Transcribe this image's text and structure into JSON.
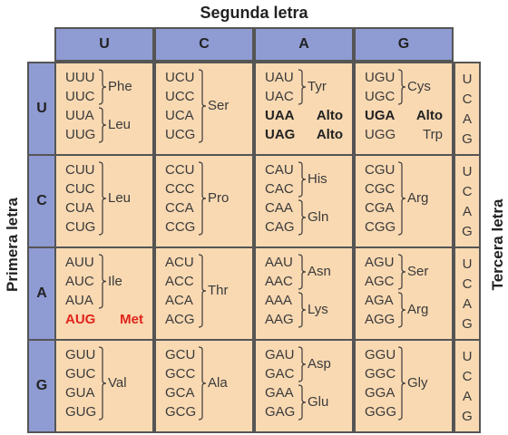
{
  "titles": {
    "second": "Segunda letra",
    "first": "Primera letra",
    "third": "Tercera letra"
  },
  "second_letters": [
    "U",
    "C",
    "A",
    "G"
  ],
  "first_letters": [
    "U",
    "C",
    "A",
    "G"
  ],
  "third_letters": [
    "U",
    "C",
    "A",
    "G"
  ],
  "cells": [
    [
      {
        "codons": [
          "UUU",
          "UUC",
          "UUA",
          "UUG"
        ],
        "groups": [
          {
            "rows": [
              0,
              1
            ],
            "label": "Phe"
          },
          {
            "rows": [
              2,
              3
            ],
            "label": "Leu"
          }
        ]
      },
      {
        "codons": [
          "UCU",
          "UCC",
          "UCA",
          "UCG"
        ],
        "groups": [
          {
            "rows": [
              0,
              3
            ],
            "label": "Ser"
          }
        ]
      },
      {
        "codons": [
          "UAU",
          "UAC",
          "UAA",
          "UAG"
        ],
        "groups": [
          {
            "rows": [
              0,
              1
            ],
            "label": "Tyr"
          }
        ],
        "inline": [
          {
            "row": 2,
            "label": "Alto",
            "style": "bold"
          },
          {
            "row": 3,
            "label": "Alto",
            "style": "bold"
          }
        ]
      },
      {
        "codons": [
          "UGU",
          "UGC",
          "UGA",
          "UGG"
        ],
        "groups": [
          {
            "rows": [
              0,
              1
            ],
            "label": "Cys"
          }
        ],
        "inline": [
          {
            "row": 2,
            "label": "Alto",
            "style": "bold"
          },
          {
            "row": 3,
            "label": "Trp",
            "style": "normal"
          }
        ]
      }
    ],
    [
      {
        "codons": [
          "CUU",
          "CUC",
          "CUA",
          "CUG"
        ],
        "groups": [
          {
            "rows": [
              0,
              3
            ],
            "label": "Leu"
          }
        ]
      },
      {
        "codons": [
          "CCU",
          "CCC",
          "CCA",
          "CCG"
        ],
        "groups": [
          {
            "rows": [
              0,
              3
            ],
            "label": "Pro"
          }
        ]
      },
      {
        "codons": [
          "CAU",
          "CAC",
          "CAA",
          "CAG"
        ],
        "groups": [
          {
            "rows": [
              0,
              1
            ],
            "label": "His"
          },
          {
            "rows": [
              2,
              3
            ],
            "label": "Gln"
          }
        ]
      },
      {
        "codons": [
          "CGU",
          "CGC",
          "CGA",
          "CGG"
        ],
        "groups": [
          {
            "rows": [
              0,
              3
            ],
            "label": "Arg"
          }
        ]
      }
    ],
    [
      {
        "codons": [
          "AUU",
          "AUC",
          "AUA",
          "AUG"
        ],
        "groups": [
          {
            "rows": [
              0,
              2
            ],
            "label": "Ile"
          }
        ],
        "inline": [
          {
            "row": 3,
            "label": "Met",
            "style": "red"
          }
        ]
      },
      {
        "codons": [
          "ACU",
          "ACC",
          "ACA",
          "ACG"
        ],
        "groups": [
          {
            "rows": [
              0,
              3
            ],
            "label": "Thr"
          }
        ]
      },
      {
        "codons": [
          "AAU",
          "AAC",
          "AAA",
          "AAG"
        ],
        "groups": [
          {
            "rows": [
              0,
              1
            ],
            "label": "Asn"
          },
          {
            "rows": [
              2,
              3
            ],
            "label": "Lys"
          }
        ]
      },
      {
        "codons": [
          "AGU",
          "AGC",
          "AGA",
          "AGG"
        ],
        "groups": [
          {
            "rows": [
              0,
              1
            ],
            "label": "Ser"
          },
          {
            "rows": [
              2,
              3
            ],
            "label": "Arg"
          }
        ]
      }
    ],
    [
      {
        "codons": [
          "GUU",
          "GUC",
          "GUA",
          "GUG"
        ],
        "groups": [
          {
            "rows": [
              0,
              3
            ],
            "label": "Val"
          }
        ]
      },
      {
        "codons": [
          "GCU",
          "GCC",
          "GCA",
          "GCG"
        ],
        "groups": [
          {
            "rows": [
              0,
              3
            ],
            "label": "Ala"
          }
        ]
      },
      {
        "codons": [
          "GAU",
          "GAC",
          "GAA",
          "GAG"
        ],
        "groups": [
          {
            "rows": [
              0,
              1
            ],
            "label": "Asp"
          },
          {
            "rows": [
              2,
              3
            ],
            "label": "Glu"
          }
        ]
      },
      {
        "codons": [
          "GGU",
          "GGC",
          "GGA",
          "GGG"
        ],
        "groups": [
          {
            "rows": [
              0,
              3
            ],
            "label": "Gly"
          }
        ]
      }
    ]
  ],
  "colors": {
    "header_fill": "#8f9bd3",
    "cell_fill": "#f9d9b2",
    "border": "#555555",
    "start_codon": "#e0241b"
  }
}
